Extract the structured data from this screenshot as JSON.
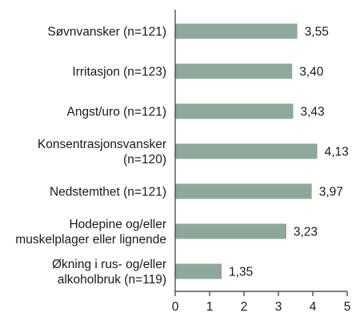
{
  "chart_data": {
    "type": "bar",
    "orientation": "horizontal",
    "categories": [
      [
        "Søvnvansker (n=121)"
      ],
      [
        "Irritasjon (n=123)"
      ],
      [
        "Angst/uro (n=121)"
      ],
      [
        "Konsentrasjonsvansker",
        "(n=120)"
      ],
      [
        "Nedstemthet (n=121)"
      ],
      [
        "Hodepine og/eller",
        "muskelplager eller lignende"
      ],
      [
        "Økning i rus- og/eller",
        "alkoholbruk (n=119)"
      ]
    ],
    "values": [
      3.55,
      3.4,
      3.43,
      4.13,
      3.97,
      3.23,
      1.35
    ],
    "value_labels": [
      "3,55",
      "3,40",
      "3,43",
      "4,13",
      "3,97",
      "3,23",
      "1,35"
    ],
    "xlim": [
      0,
      5
    ],
    "x_ticks": [
      0,
      1,
      2,
      3,
      4,
      5
    ],
    "tick_labels": [
      "0",
      "1",
      "2",
      "3",
      "4",
      "5"
    ],
    "grid": false,
    "bar_color": "#8fa899",
    "axis_color": "#333333"
  }
}
